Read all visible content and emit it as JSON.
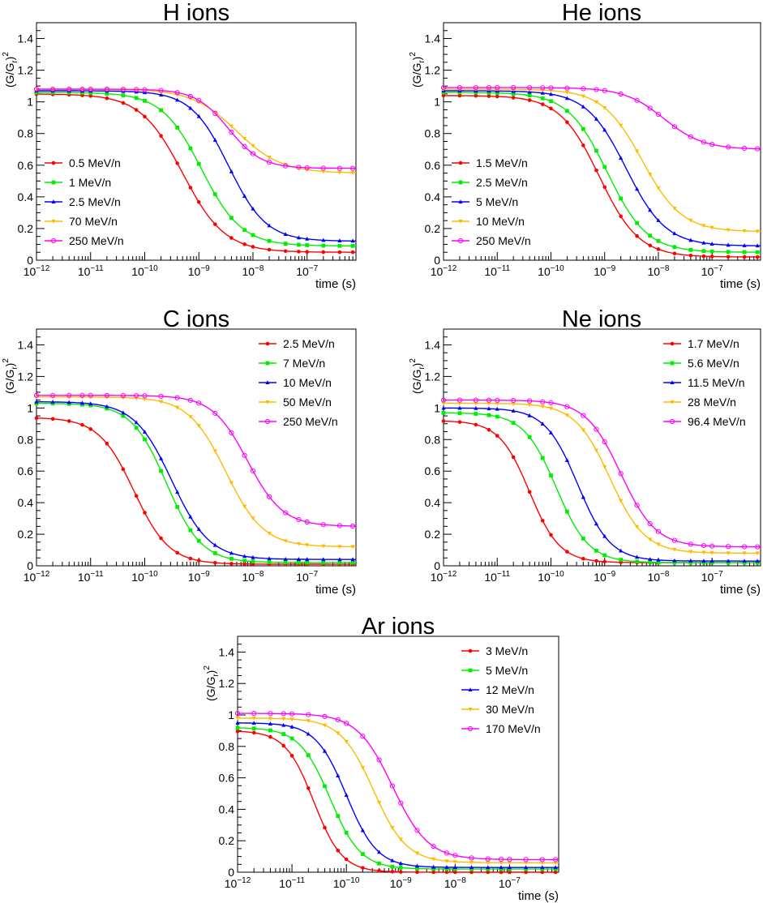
{
  "chart_data": [
    {
      "type": "line",
      "title": "H ions",
      "xlabel": "time (s)",
      "ylabel": "(G/G_r)^2",
      "xscale": "log",
      "xlim": [
        1e-12,
        8e-07
      ],
      "ylim": [
        0,
        1.5
      ],
      "legend_position": "bottom-left",
      "xticks": [
        {
          "base": "10",
          "exp": "−12"
        },
        {
          "base": "10",
          "exp": "−11"
        },
        {
          "base": "10",
          "exp": "−10"
        },
        {
          "base": "10",
          "exp": "−9"
        },
        {
          "base": "10",
          "exp": "−8"
        },
        {
          "base": "10",
          "exp": "−7"
        }
      ],
      "yticks": [
        "0",
        "0.2",
        "0.4",
        "0.6",
        "0.8",
        "1",
        "1.2",
        "1.4"
      ],
      "series": [
        {
          "name": "0.5 MeV/n",
          "color": "#ff0000",
          "marker": "circle",
          "curve": [
            1.05,
            0.05,
            -9.3,
            0.9
          ]
        },
        {
          "name": "1 MeV/n",
          "color": "#00ee00",
          "marker": "square",
          "curve": [
            1.06,
            0.09,
            -8.95,
            0.85
          ]
        },
        {
          "name": "2.5 MeV/n",
          "color": "#0000ff",
          "marker": "triangle",
          "curve": [
            1.07,
            0.12,
            -8.45,
            0.8
          ]
        },
        {
          "name": "70 MeV/n",
          "color": "#ffbb00",
          "marker": "triangle-down",
          "curve": [
            1.08,
            0.55,
            -8.3,
            0.95
          ]
        },
        {
          "name": "250 MeV/n",
          "color": "#ff00ff",
          "marker": "open-circle",
          "curve": [
            1.08,
            0.58,
            -8.45,
            0.7
          ]
        }
      ]
    },
    {
      "type": "line",
      "title": "He ions",
      "xlabel": "time (s)",
      "ylabel": "(G/G_r)^2",
      "xscale": "log",
      "xlim": [
        1e-12,
        8e-07
      ],
      "ylim": [
        0,
        1.5
      ],
      "legend_position": "bottom-left",
      "xticks": [
        {
          "base": "10",
          "exp": "−12"
        },
        {
          "base": "10",
          "exp": "−11"
        },
        {
          "base": "10",
          "exp": "−10"
        },
        {
          "base": "10",
          "exp": "−9"
        },
        {
          "base": "10",
          "exp": "−8"
        },
        {
          "base": "10",
          "exp": "−7"
        }
      ],
      "yticks": [
        "0",
        "0.2",
        "0.4",
        "0.6",
        "0.8",
        "1",
        "1.2",
        "1.4"
      ],
      "series": [
        {
          "name": "1.5 MeV/n",
          "color": "#ff0000",
          "marker": "circle",
          "curve": [
            1.04,
            0.02,
            -9.1,
            0.85
          ]
        },
        {
          "name": "2.5 MeV/n",
          "color": "#00ee00",
          "marker": "square",
          "curve": [
            1.06,
            0.05,
            -8.95,
            0.85
          ]
        },
        {
          "name": "5 MeV/n",
          "color": "#0000ff",
          "marker": "triangle",
          "curve": [
            1.07,
            0.09,
            -8.6,
            0.85
          ]
        },
        {
          "name": "10 MeV/n",
          "color": "#ffbb00",
          "marker": "triangle-down",
          "curve": [
            1.08,
            0.18,
            -8.3,
            0.85
          ]
        },
        {
          "name": "250 MeV/n",
          "color": "#ff00ff",
          "marker": "open-circle",
          "curve": [
            1.09,
            0.7,
            -7.9,
            0.85
          ]
        }
      ]
    },
    {
      "type": "line",
      "title": "C ions",
      "xlabel": "time (s)",
      "ylabel": "(G/G_r)^2",
      "xscale": "log",
      "xlim": [
        1e-12,
        8e-07
      ],
      "ylim": [
        0,
        1.5
      ],
      "legend_position": "top-right",
      "xticks": [
        {
          "base": "10",
          "exp": "−12"
        },
        {
          "base": "10",
          "exp": "−11"
        },
        {
          "base": "10",
          "exp": "−10"
        },
        {
          "base": "10",
          "exp": "−9"
        },
        {
          "base": "10",
          "exp": "−8"
        },
        {
          "base": "10",
          "exp": "−7"
        }
      ],
      "yticks": [
        "0",
        "0.2",
        "0.4",
        "0.6",
        "0.8",
        "1",
        "1.2",
        "1.4"
      ],
      "series": [
        {
          "name": "2.5 MeV/n",
          "color": "#ff0000",
          "marker": "circle",
          "curve": [
            0.94,
            0.01,
            -10.2,
            0.75
          ]
        },
        {
          "name": "7 MeV/n",
          "color": "#00ee00",
          "marker": "square",
          "curve": [
            1.03,
            0.02,
            -9.6,
            0.75
          ]
        },
        {
          "name": "10 MeV/n",
          "color": "#0000ff",
          "marker": "triangle",
          "curve": [
            1.04,
            0.04,
            -9.5,
            0.8
          ]
        },
        {
          "name": "50 MeV/n",
          "color": "#ffbb00",
          "marker": "triangle-down",
          "curve": [
            1.07,
            0.12,
            -8.5,
            0.8
          ]
        },
        {
          "name": "250 MeV/n",
          "color": "#ff00ff",
          "marker": "open-circle",
          "curve": [
            1.08,
            0.25,
            -8.1,
            0.75
          ]
        }
      ]
    },
    {
      "type": "line",
      "title": "Ne ions",
      "xlabel": "time (s)",
      "ylabel": "(G/G_r)^2",
      "xscale": "log",
      "xlim": [
        1e-12,
        8e-07
      ],
      "ylim": [
        0,
        1.5
      ],
      "legend_position": "top-right",
      "xticks": [
        {
          "base": "10",
          "exp": "−12"
        },
        {
          "base": "10",
          "exp": "−11"
        },
        {
          "base": "10",
          "exp": "−10"
        },
        {
          "base": "10",
          "exp": "−9"
        },
        {
          "base": "10",
          "exp": "−8"
        },
        {
          "base": "10",
          "exp": "−7"
        }
      ],
      "yticks": [
        "0",
        "0.2",
        "0.4",
        "0.6",
        "0.8",
        "1",
        "1.2",
        "1.4"
      ],
      "series": [
        {
          "name": "1.7 MeV/n",
          "color": "#ff0000",
          "marker": "circle",
          "curve": [
            0.92,
            0.02,
            -10.4,
            0.65
          ]
        },
        {
          "name": "5.6 MeV/n",
          "color": "#00ee00",
          "marker": "square",
          "curve": [
            0.97,
            0.02,
            -9.9,
            0.7
          ]
        },
        {
          "name": "11.5 MeV/n",
          "color": "#0000ff",
          "marker": "triangle",
          "curve": [
            1.0,
            0.03,
            -9.5,
            0.7
          ]
        },
        {
          "name": "28 MeV/n",
          "color": "#ffbb00",
          "marker": "triangle-down",
          "curve": [
            1.03,
            0.08,
            -8.9,
            0.75
          ]
        },
        {
          "name": "96.4 MeV/n",
          "color": "#ff00ff",
          "marker": "open-circle",
          "curve": [
            1.05,
            0.12,
            -8.7,
            0.75
          ]
        }
      ]
    },
    {
      "type": "line",
      "title": "Ar ions",
      "xlabel": "time (s)",
      "ylabel": "(G/G_r)^2",
      "xscale": "log",
      "xlim": [
        1e-12,
        8e-07
      ],
      "ylim": [
        0,
        1.5
      ],
      "legend_position": "top-right",
      "xticks": [
        {
          "base": "10",
          "exp": "−12"
        },
        {
          "base": "10",
          "exp": "−11"
        },
        {
          "base": "10",
          "exp": "−10"
        },
        {
          "base": "10",
          "exp": "−9"
        },
        {
          "base": "10",
          "exp": "−8"
        },
        {
          "base": "10",
          "exp": "−7"
        }
      ],
      "yticks": [
        "0",
        "0.2",
        "0.4",
        "0.6",
        "0.8",
        "1",
        "1.2",
        "1.4"
      ],
      "series": [
        {
          "name": "3 MeV/n",
          "color": "#ff0000",
          "marker": "circle",
          "curve": [
            0.9,
            0.0,
            -10.6,
            0.6
          ]
        },
        {
          "name": "5 MeV/n",
          "color": "#00ee00",
          "marker": "square",
          "curve": [
            0.92,
            0.02,
            -10.3,
            0.65
          ]
        },
        {
          "name": "12 MeV/n",
          "color": "#0000ff",
          "marker": "triangle",
          "curve": [
            0.95,
            0.03,
            -10.0,
            0.65
          ]
        },
        {
          "name": "30 MeV/n",
          "color": "#ffbb00",
          "marker": "triangle-down",
          "curve": [
            0.98,
            0.06,
            -9.5,
            0.7
          ]
        },
        {
          "name": "170 MeV/n",
          "color": "#ff00ff",
          "marker": "open-circle",
          "curve": [
            1.01,
            0.08,
            -9.15,
            0.75
          ]
        }
      ]
    }
  ]
}
